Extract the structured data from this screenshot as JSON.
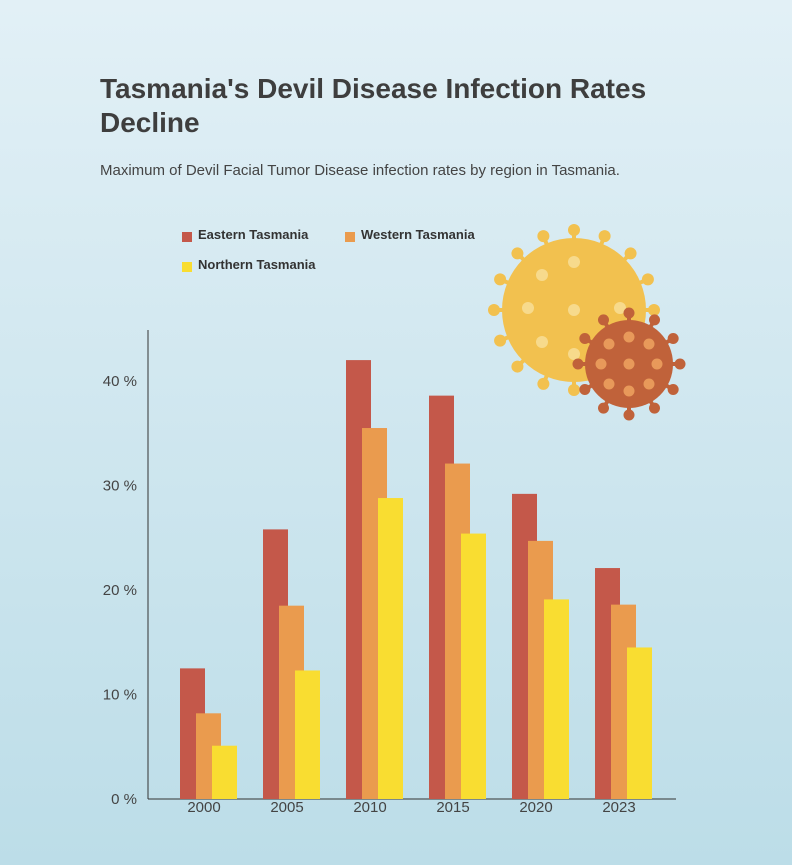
{
  "title": "Tasmania's Devil Disease Infection Rates Decline",
  "subtitle": "Maximum of Devil Facial Tumor Disease infection rates by region in Tasmania.",
  "colors": {
    "eastern": "#c4584a",
    "western": "#ea9b4e",
    "northern": "#f9dd31",
    "virus_large": "#f2c14f",
    "virus_large_dots": "#f7da8c",
    "virus_small": "#c0623a",
    "virus_small_dots": "#e8995a"
  },
  "chart_data": {
    "type": "bar",
    "categories": [
      "2000",
      "2005",
      "2010",
      "2015",
      "2020",
      "2023"
    ],
    "series": [
      {
        "name": "Eastern Tasmania",
        "values": [
          12.5,
          25.8,
          42.0,
          38.6,
          29.2,
          22.1
        ]
      },
      {
        "name": "Western Tasmania",
        "values": [
          8.2,
          18.5,
          35.5,
          32.1,
          24.7,
          18.6
        ]
      },
      {
        "name": "Northern Tasmania",
        "values": [
          5.1,
          12.3,
          28.8,
          25.4,
          19.1,
          14.5
        ]
      }
    ],
    "y_ticks": [
      "0 %",
      "10 %",
      "20 %",
      "30 %",
      "40 %"
    ],
    "ylim": [
      0,
      45
    ],
    "grid": false,
    "legend_position": "top-left"
  },
  "icons": [
    "virus-large-icon",
    "virus-small-icon"
  ]
}
